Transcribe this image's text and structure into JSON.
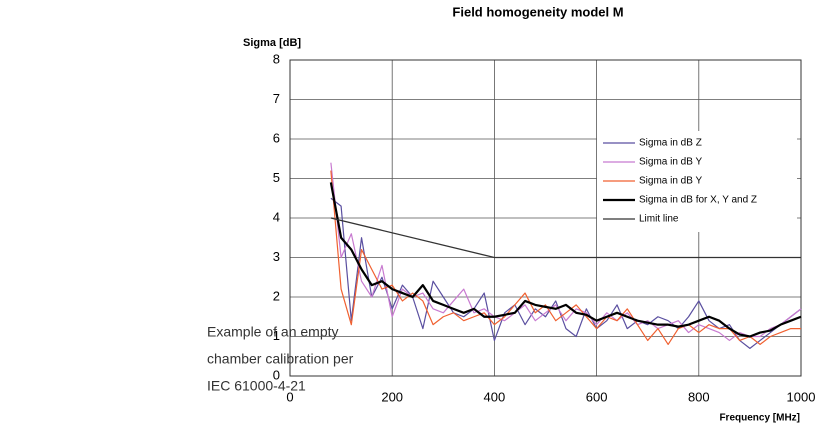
{
  "caption": [
    "Example of an empty",
    "chamber calibration per",
    "IEC 61000-4-21"
  ],
  "chart_data": {
    "type": "line",
    "title": "Field homogeneity model M",
    "ylabel": "Sigma [dB]",
    "xlabel": "Frequency [MHz]",
    "xlim": [
      0,
      1000
    ],
    "ylim": [
      0,
      8
    ],
    "xticks": [
      0,
      200,
      400,
      600,
      800,
      1000
    ],
    "yticks": [
      0,
      1,
      2,
      3,
      4,
      5,
      6,
      7,
      8
    ],
    "grid": true,
    "legend": "upper right",
    "x": [
      80,
      100,
      120,
      140,
      160,
      180,
      200,
      220,
      240,
      260,
      280,
      300,
      320,
      340,
      360,
      380,
      400,
      420,
      440,
      460,
      480,
      500,
      520,
      540,
      560,
      580,
      600,
      620,
      640,
      660,
      680,
      700,
      720,
      740,
      760,
      780,
      800,
      820,
      840,
      860,
      880,
      900,
      920,
      940,
      960,
      980,
      1000
    ],
    "series": [
      {
        "name": "Sigma in dB Z",
        "color": "#5a4fa0",
        "width": 1.2,
        "values": [
          4.5,
          4.3,
          1.4,
          3.5,
          2.0,
          2.5,
          1.7,
          2.3,
          2.0,
          1.2,
          2.4,
          2.0,
          1.6,
          1.5,
          1.7,
          2.1,
          0.9,
          1.6,
          1.8,
          1.3,
          1.7,
          1.5,
          1.9,
          1.2,
          1.0,
          1.7,
          1.2,
          1.4,
          1.8,
          1.2,
          1.4,
          1.3,
          1.5,
          1.4,
          1.2,
          1.5,
          1.9,
          1.4,
          1.2,
          1.3,
          0.9,
          0.7,
          0.9,
          1.1,
          1.3,
          1.5,
          1.7
        ]
      },
      {
        "name": "Sigma in dB Y",
        "color": "#c87ad0",
        "width": 1.2,
        "values": [
          5.4,
          3.0,
          3.6,
          2.4,
          2.0,
          2.8,
          1.5,
          2.2,
          2.0,
          2.1,
          1.7,
          1.6,
          1.9,
          2.2,
          1.6,
          1.7,
          1.5,
          1.4,
          1.6,
          1.8,
          1.4,
          1.6,
          1.8,
          1.4,
          1.7,
          1.6,
          1.3,
          1.6,
          1.4,
          1.6,
          1.3,
          1.4,
          1.2,
          1.3,
          1.4,
          1.1,
          1.3,
          1.2,
          1.1,
          0.9,
          1.1,
          1.0,
          1.0,
          1.2,
          1.3,
          1.5,
          1.7
        ]
      },
      {
        "name": "Sigma in dB Y",
        "color": "#f06030",
        "width": 1.2,
        "values": [
          5.2,
          2.2,
          1.3,
          3.2,
          2.7,
          2.2,
          2.3,
          1.9,
          2.1,
          1.9,
          1.3,
          1.5,
          1.6,
          1.4,
          1.5,
          1.6,
          1.3,
          1.5,
          1.8,
          2.1,
          1.6,
          1.8,
          1.4,
          1.6,
          1.8,
          1.5,
          1.2,
          1.5,
          1.4,
          1.7,
          1.3,
          0.9,
          1.2,
          0.8,
          1.2,
          1.3,
          1.1,
          1.3,
          1.2,
          1.2,
          0.9,
          1.0,
          0.8,
          1.0,
          1.1,
          1.2,
          1.2
        ]
      },
      {
        "name": "Sigma in dB for X, Y and Z",
        "color": "#000000",
        "width": 2.2,
        "values": [
          4.9,
          3.5,
          3.2,
          2.7,
          2.3,
          2.4,
          2.2,
          2.1,
          2.0,
          2.3,
          1.9,
          1.8,
          1.7,
          1.6,
          1.7,
          1.5,
          1.5,
          1.55,
          1.6,
          1.9,
          1.8,
          1.75,
          1.7,
          1.8,
          1.6,
          1.55,
          1.4,
          1.5,
          1.6,
          1.5,
          1.4,
          1.35,
          1.3,
          1.3,
          1.25,
          1.3,
          1.4,
          1.5,
          1.4,
          1.2,
          1.05,
          1.0,
          1.1,
          1.15,
          1.3,
          1.4,
          1.5
        ]
      },
      {
        "name": "Limit line",
        "color": "#333333",
        "width": 1.3,
        "x": [
          80,
          400,
          1000
        ],
        "values": [
          4,
          3,
          3
        ]
      }
    ]
  }
}
